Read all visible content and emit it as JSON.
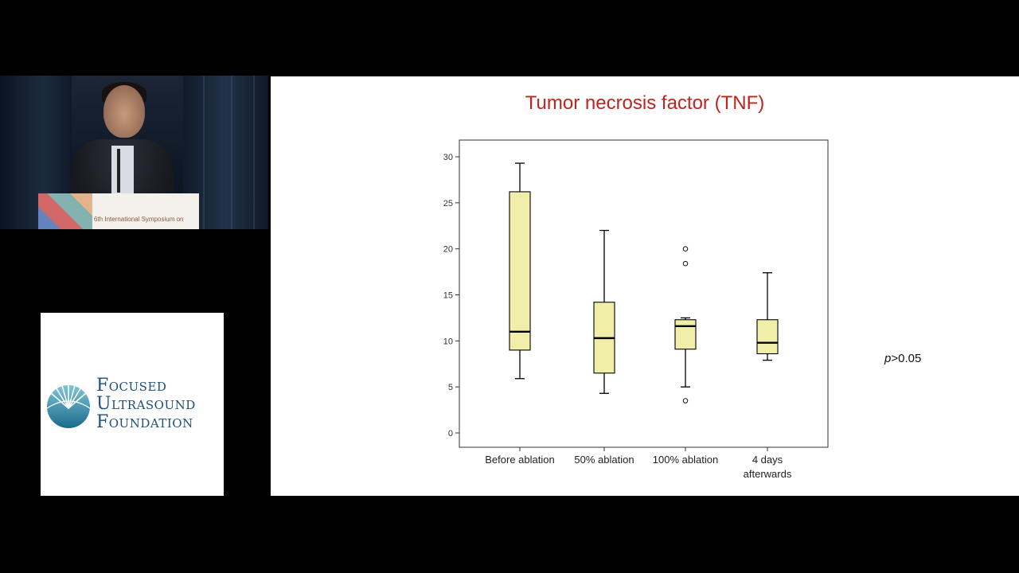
{
  "video": {
    "podium_text": "6th International Symposium on"
  },
  "logo": {
    "line1": "Focused",
    "line2": "Ultrasound",
    "line3": "Foundation"
  },
  "slide": {
    "title": "Tumor necrosis factor (TNF)",
    "p_italic": "p",
    "p_rest": ">0.05"
  },
  "chart_data": {
    "type": "box",
    "title": "Tumor necrosis factor (TNF)",
    "xlabel": "",
    "ylabel": "",
    "ylim": [
      -1.5,
      32
    ],
    "yticks": [
      0,
      5,
      10,
      15,
      20,
      25,
      30
    ],
    "grid": false,
    "box_fill": "#f1eeaa",
    "categories": [
      {
        "label": [
          "Before ablation"
        ],
        "whisker_low": 5.9,
        "q1": 9.0,
        "median": 11.0,
        "q3": 26.2,
        "whisker_high": 29.3,
        "outliers": []
      },
      {
        "label": [
          "50% ablation"
        ],
        "whisker_low": 4.3,
        "q1": 6.5,
        "median": 10.3,
        "q3": 14.2,
        "whisker_high": 22.0,
        "outliers": []
      },
      {
        "label": [
          "100% ablation"
        ],
        "whisker_low": 5.0,
        "q1": 9.1,
        "median": 11.6,
        "q3": 12.3,
        "whisker_high": 12.5,
        "outliers": [
          20.0,
          18.4,
          3.5
        ]
      },
      {
        "label": [
          "4 days",
          "afterwards"
        ],
        "whisker_low": 7.9,
        "q1": 8.6,
        "median": 9.8,
        "q3": 12.3,
        "whisker_high": 17.4,
        "outliers": []
      }
    ],
    "annotation": "p>0.05"
  }
}
